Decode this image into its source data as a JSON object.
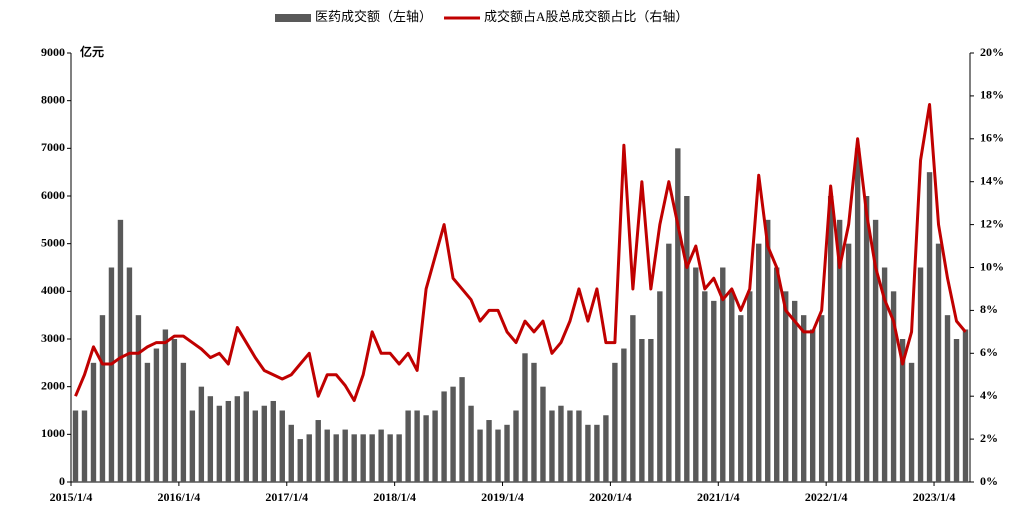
{
  "chart_data": {
    "type": "bar-line",
    "y_unit_label": "亿元",
    "categories": [
      "2015/1/4",
      null,
      null,
      null,
      null,
      null,
      null,
      null,
      null,
      null,
      null,
      null,
      "2016/1/4",
      null,
      null,
      null,
      null,
      null,
      null,
      null,
      null,
      null,
      null,
      null,
      "2017/1/4",
      null,
      null,
      null,
      null,
      null,
      null,
      null,
      null,
      null,
      null,
      null,
      "2018/1/4",
      null,
      null,
      null,
      null,
      null,
      null,
      null,
      null,
      null,
      null,
      null,
      "2019/1/4",
      null,
      null,
      null,
      null,
      null,
      null,
      null,
      null,
      null,
      null,
      null,
      "2020/1/4",
      null,
      null,
      null,
      null,
      null,
      null,
      null,
      null,
      null,
      null,
      null,
      "2021/1/4",
      null,
      null,
      null,
      null,
      null,
      null,
      null,
      null,
      null,
      null,
      null,
      "2022/1/4",
      null,
      null,
      null,
      null,
      null,
      null,
      null,
      null,
      null,
      null,
      null,
      "2023/1/4",
      null,
      null,
      null
    ],
    "series": [
      {
        "name": "医药成交额（左轴）",
        "kind": "bar",
        "color": "#595959",
        "values": [
          1500,
          1500,
          2500,
          3500,
          4500,
          5500,
          4500,
          3500,
          2500,
          2800,
          3200,
          3000,
          2500,
          1500,
          2000,
          1800,
          1600,
          1700,
          1800,
          1900,
          1500,
          1600,
          1700,
          1500,
          1200,
          900,
          1000,
          1300,
          1100,
          1000,
          1100,
          1000,
          1000,
          1000,
          1100,
          1000,
          1000,
          1500,
          1500,
          1400,
          1500,
          1900,
          2000,
          2200,
          1600,
          1100,
          1300,
          1100,
          1200,
          1500,
          2700,
          2500,
          2000,
          1500,
          1600,
          1500,
          1500,
          1200,
          1200,
          1400,
          2500,
          2800,
          3500,
          3000,
          3000,
          4000,
          5000,
          7000,
          6000,
          4500,
          4000,
          3800,
          4500,
          4000,
          3500,
          4000,
          5000,
          5500,
          4500,
          4000,
          3800,
          3500,
          3200,
          3500,
          6000,
          5500,
          5000,
          7000,
          6000,
          5500,
          4500,
          4000,
          3000,
          2500,
          4500,
          6500,
          5000,
          3500,
          3000,
          3200
        ]
      },
      {
        "name": "成交额占A股总成交额占比（右轴）",
        "kind": "line",
        "axis": "y2",
        "color": "#c00000",
        "values": [
          4.0,
          5.0,
          6.3,
          5.5,
          5.5,
          5.8,
          6.0,
          6.0,
          6.3,
          6.5,
          6.5,
          6.8,
          6.8,
          6.5,
          6.2,
          5.8,
          6.0,
          5.5,
          7.2,
          6.5,
          5.8,
          5.2,
          5.0,
          4.8,
          5.0,
          5.5,
          6.0,
          4.0,
          5.0,
          5.0,
          4.5,
          3.8,
          5.0,
          7.0,
          6.0,
          6.0,
          5.5,
          6.0,
          5.2,
          9.0,
          10.5,
          12.0,
          9.5,
          9.0,
          8.5,
          7.5,
          8.0,
          8.0,
          7.0,
          6.5,
          7.5,
          7.0,
          7.5,
          6.0,
          6.5,
          7.5,
          9.0,
          7.5,
          9.0,
          6.5,
          6.5,
          15.7,
          9.0,
          14.0,
          9.0,
          12.0,
          14.0,
          12.0,
          10.0,
          11.0,
          9.0,
          9.5,
          8.5,
          9.0,
          8.0,
          9.0,
          14.3,
          11.0,
          10.0,
          8.0,
          7.5,
          7.0,
          7.0,
          8.0,
          13.8,
          10.0,
          12.0,
          16.0,
          12.5,
          10.0,
          8.5,
          7.5,
          5.5,
          7.0,
          15.0,
          17.6,
          12.0,
          9.5,
          7.5,
          7.0
        ]
      }
    ],
    "ylim": [
      0,
      9000
    ],
    "yticks": [
      0,
      1000,
      2000,
      3000,
      4000,
      5000,
      6000,
      7000,
      8000,
      9000
    ],
    "y2lim": [
      0,
      20
    ],
    "y2ticks": [
      {
        "value": 0,
        "label": "0%"
      },
      {
        "value": 2,
        "label": "2%"
      },
      {
        "value": 4,
        "label": "4%"
      },
      {
        "value": 6,
        "label": "6%"
      },
      {
        "value": 8,
        "label": "8%"
      },
      {
        "value": 10,
        "label": "10%"
      },
      {
        "value": 12,
        "label": "12%"
      },
      {
        "value": 14,
        "label": "14%"
      },
      {
        "value": 16,
        "label": "16%"
      },
      {
        "value": 18,
        "label": "18%"
      },
      {
        "value": 20,
        "label": "20%"
      }
    ],
    "legend": "top"
  }
}
